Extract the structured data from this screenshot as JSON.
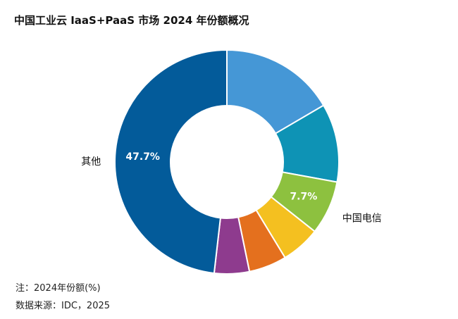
{
  "title": "中国工业云 IaaS+PaaS 市场 2024 年份额概况",
  "notes": {
    "note1": "注：2024年份额(%)",
    "note2": "数据来源：IDC，2025"
  },
  "chart_data": {
    "type": "pie",
    "variant": "donut",
    "start": "12 o'clock, clockwise",
    "slices": [
      {
        "label": "",
        "value": 16.4,
        "color": "#4597D6",
        "value_label": ""
      },
      {
        "label": "",
        "value": 11.2,
        "color": "#0E93B5",
        "value_label": ""
      },
      {
        "label": "中国电信",
        "value": 7.7,
        "color": "#8DC13F",
        "value_label": "7.7%"
      },
      {
        "label": "",
        "value": 5.6,
        "color": "#F4C020",
        "value_label": ""
      },
      {
        "label": "",
        "value": 5.4,
        "color": "#E4701E",
        "value_label": ""
      },
      {
        "label": "",
        "value": 5.0,
        "color": "#8E3B8E",
        "value_label": ""
      },
      {
        "label": "其他",
        "value": 47.7,
        "color": "#035B9A",
        "value_label": "47.7%"
      }
    ]
  }
}
